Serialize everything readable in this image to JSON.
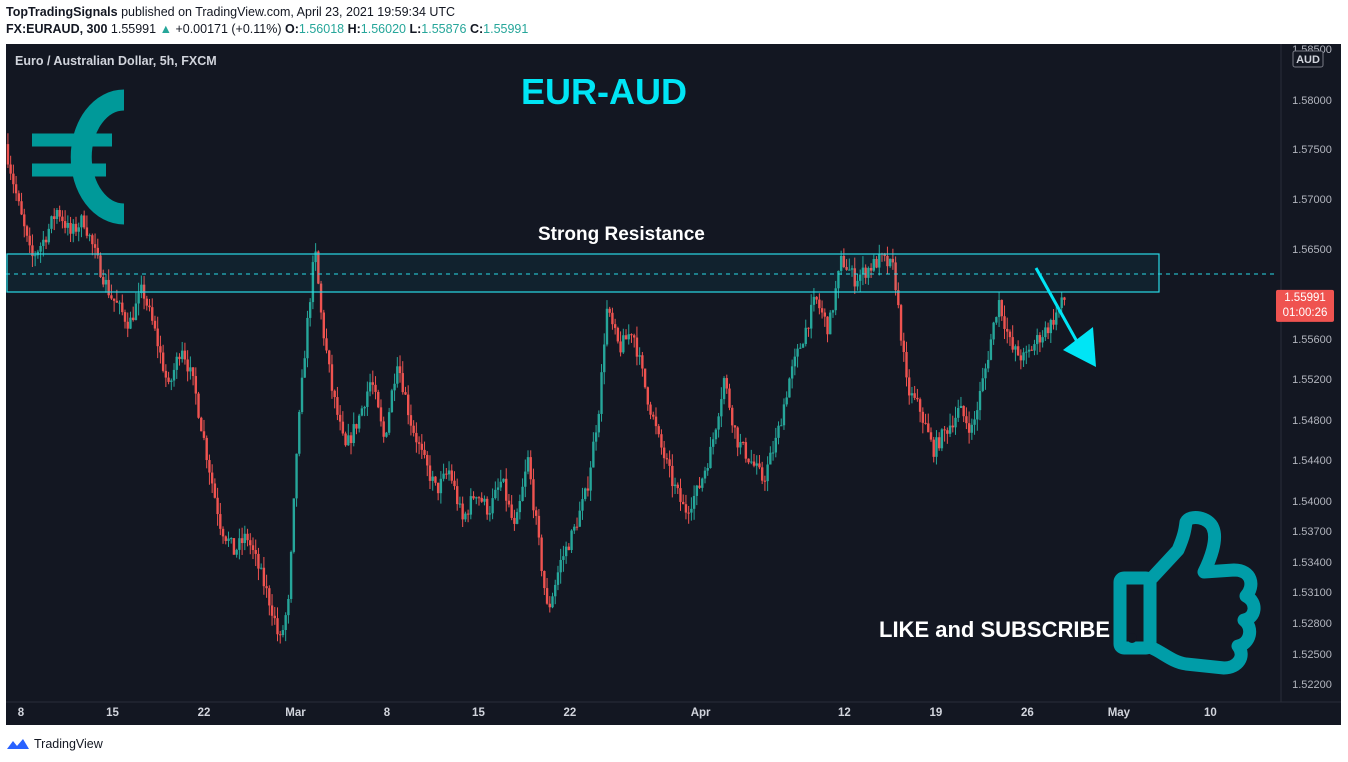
{
  "header": {
    "author": "TopTradingSignals",
    "published_text": "published on TradingView.com, April 23, 2021 19:59:34 UTC",
    "symbol": "FX:EURAUD, 300",
    "last": "1.55991",
    "change_arrow": "▲",
    "change": "+0.00171 (+0.11%)",
    "open_label": "O:",
    "open": "1.56018",
    "high_label": "H:",
    "high": "1.56020",
    "low_label": "L:",
    "low": "1.55876",
    "close_label": "C:",
    "close": "1.55991"
  },
  "footer": {
    "brand": "TradingView"
  },
  "colors": {
    "up": "#26a69a",
    "down": "#ef5350",
    "accent": "#00e5f5",
    "background": "#131722"
  },
  "chart_data": {
    "type": "candlestick",
    "legend": "Euro / Australian Dollar, 5h, FXCM",
    "title": "EUR-AUD",
    "currency_badge": "AUD",
    "annotations": {
      "resistance": "Strong Resistance",
      "cta": "LIKE and SUBSCRIBE"
    },
    "icons": [
      "euro-sign-icon",
      "thumbs-up-icon",
      "down-arrow-icon"
    ],
    "last_price": "1.55991",
    "countdown": "01:00:26",
    "resistance_zone": [
      1.5607,
      1.5645
    ],
    "resistance_dashed": 1.5625,
    "y_ticks": [
      "1.58000",
      "1.57500",
      "1.57000",
      "1.56500",
      "1.55600",
      "1.55200",
      "1.54800",
      "1.54400",
      "1.54000",
      "1.53700",
      "1.53400",
      "1.53100",
      "1.52800",
      "1.52500",
      "1.52200"
    ],
    "y_top_partial": "1.58500",
    "x_ticks": [
      {
        "label": "8",
        "day": 8
      },
      {
        "label": "15",
        "day": 15
      },
      {
        "label": "22",
        "day": 22
      },
      {
        "label": "Mar",
        "day": 29
      },
      {
        "label": "8",
        "day": 36
      },
      {
        "label": "15",
        "day": 43
      },
      {
        "label": "22",
        "day": 50
      },
      {
        "label": "Apr",
        "day": 60
      },
      {
        "label": "12",
        "day": 71
      },
      {
        "label": "19",
        "day": 78
      },
      {
        "label": "26",
        "day": 85
      },
      {
        "label": "May",
        "day": 92
      },
      {
        "label": "10",
        "day": 99
      }
    ],
    "x_range": [
      "2021-02-07",
      "2021-05-16"
    ],
    "path_points": [
      [
        7.0,
        1.5755
      ],
      [
        8.0,
        1.5695
      ],
      [
        9.0,
        1.564
      ],
      [
        10.0,
        1.566
      ],
      [
        11.0,
        1.569
      ],
      [
        12.0,
        1.5665
      ],
      [
        13.0,
        1.568
      ],
      [
        14.0,
        1.564
      ],
      [
        15.0,
        1.5605
      ],
      [
        16.5,
        1.5575
      ],
      [
        17.5,
        1.561
      ],
      [
        18.5,
        1.5565
      ],
      [
        19.5,
        1.551
      ],
      [
        20.5,
        1.5555
      ],
      [
        21.5,
        1.551
      ],
      [
        22.5,
        1.544
      ],
      [
        23.5,
        1.5375
      ],
      [
        24.5,
        1.535
      ],
      [
        25.5,
        1.5365
      ],
      [
        26.5,
        1.533
      ],
      [
        27.5,
        1.529
      ],
      [
        28.0,
        1.526
      ],
      [
        28.7,
        1.53
      ],
      [
        29.3,
        1.545
      ],
      [
        30.0,
        1.556
      ],
      [
        30.7,
        1.565
      ],
      [
        31.2,
        1.558
      ],
      [
        32.0,
        1.551
      ],
      [
        33.0,
        1.545
      ],
      [
        34.0,
        1.548
      ],
      [
        35.0,
        1.552
      ],
      [
        36.0,
        1.546
      ],
      [
        37.0,
        1.554
      ],
      [
        38.0,
        1.548
      ],
      [
        39.0,
        1.544
      ],
      [
        40.0,
        1.541
      ],
      [
        41.0,
        1.543
      ],
      [
        42.0,
        1.538
      ],
      [
        43.0,
        1.541
      ],
      [
        44.0,
        1.539
      ],
      [
        45.0,
        1.542
      ],
      [
        46.0,
        1.537
      ],
      [
        47.0,
        1.544
      ],
      [
        48.0,
        1.534
      ],
      [
        48.5,
        1.529
      ],
      [
        49.5,
        1.534
      ],
      [
        50.5,
        1.537
      ],
      [
        51.5,
        1.541
      ],
      [
        52.5,
        1.55
      ],
      [
        53.0,
        1.559
      ],
      [
        54.0,
        1.555
      ],
      [
        55.0,
        1.557
      ],
      [
        56.0,
        1.551
      ],
      [
        57.0,
        1.546
      ],
      [
        58.0,
        1.542
      ],
      [
        59.0,
        1.539
      ],
      [
        60.0,
        1.541
      ],
      [
        61.0,
        1.545
      ],
      [
        62.0,
        1.552
      ],
      [
        63.0,
        1.546
      ],
      [
        64.0,
        1.544
      ],
      [
        65.0,
        1.542
      ],
      [
        66.0,
        1.546
      ],
      [
        67.0,
        1.552
      ],
      [
        68.0,
        1.556
      ],
      [
        69.0,
        1.56
      ],
      [
        70.0,
        1.557
      ],
      [
        71.0,
        1.564
      ],
      [
        72.0,
        1.562
      ],
      [
        73.0,
        1.563
      ],
      [
        74.0,
        1.564
      ],
      [
        75.0,
        1.563
      ],
      [
        76.0,
        1.551
      ],
      [
        77.0,
        1.549
      ],
      [
        78.0,
        1.545
      ],
      [
        79.0,
        1.547
      ],
      [
        80.0,
        1.549
      ],
      [
        81.0,
        1.547
      ],
      [
        82.0,
        1.553
      ],
      [
        83.0,
        1.56
      ],
      [
        84.0,
        1.555
      ],
      [
        85.0,
        1.554
      ],
      [
        86.0,
        1.556
      ],
      [
        87.0,
        1.5575
      ],
      [
        88.0,
        1.5599
      ]
    ]
  }
}
